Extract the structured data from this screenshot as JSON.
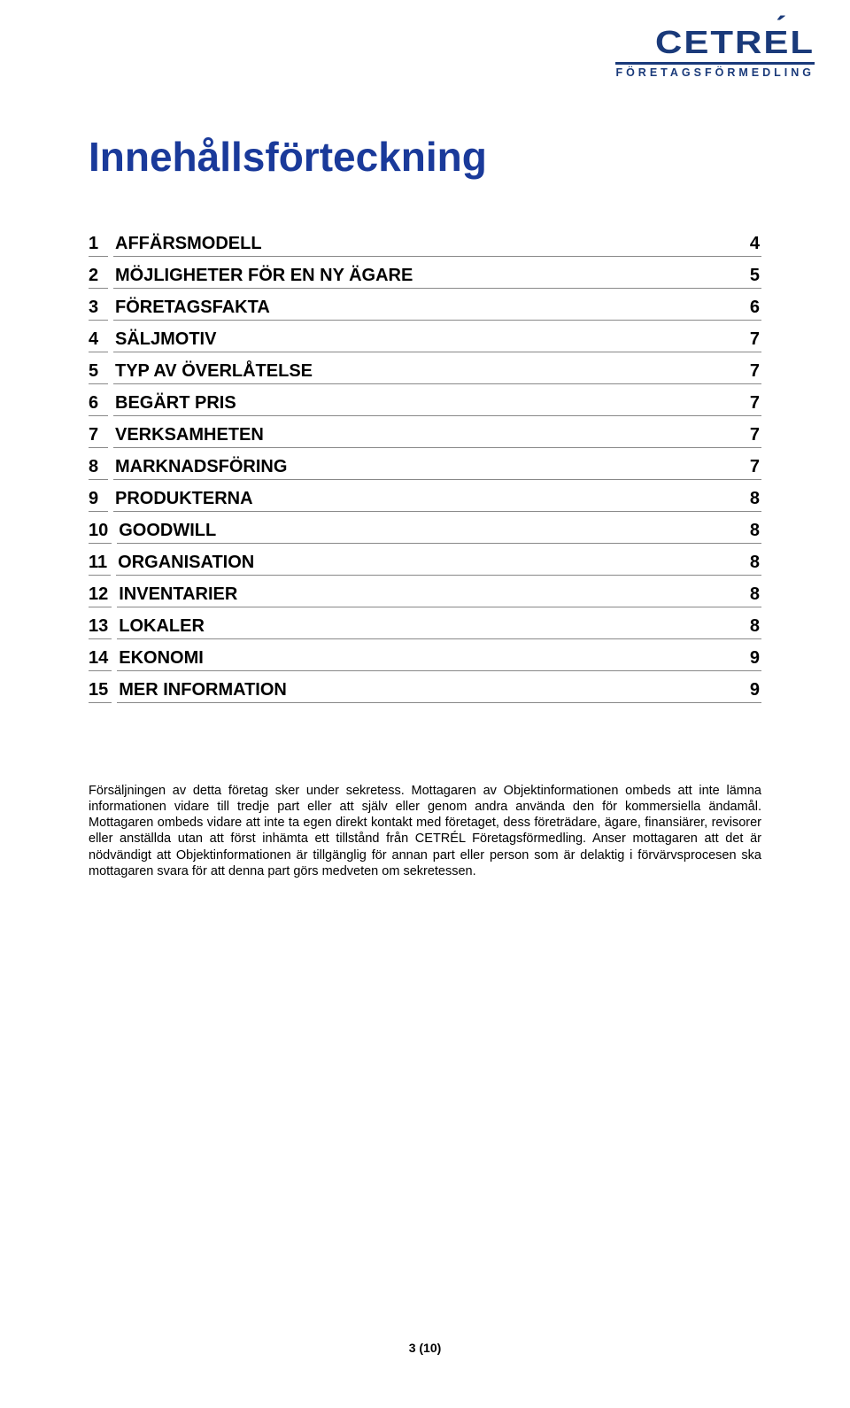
{
  "logo": {
    "main_prefix": "CETR",
    "main_accent": "E",
    "main_suffix": "L",
    "sub": "FÖRETAGSFÖRMEDLING",
    "color": "#1a3a7a"
  },
  "title": "Innehållsförteckning",
  "title_color": "#1a3a9a",
  "toc": [
    {
      "num": "1",
      "label": "AFFÄRSMODELL",
      "page": "4"
    },
    {
      "num": "2",
      "label": "MÖJLIGHETER FÖR EN NY ÄGARE",
      "page": "5"
    },
    {
      "num": "3",
      "label": "FÖRETAGSFAKTA",
      "page": "6"
    },
    {
      "num": "4",
      "label": "SÄLJMOTIV",
      "page": "7"
    },
    {
      "num": "5",
      "label": "TYP AV ÖVERLÅTELSE",
      "page": "7"
    },
    {
      "num": "6",
      "label": "BEGÄRT PRIS",
      "page": "7"
    },
    {
      "num": "7",
      "label": "VERKSAMHETEN",
      "page": "7"
    },
    {
      "num": "8",
      "label": "MARKNADSFÖRING",
      "page": "7"
    },
    {
      "num": "9",
      "label": "PRODUKTERNA",
      "page": "8"
    },
    {
      "num": "10",
      "label": "GOODWILL",
      "page": "8"
    },
    {
      "num": "11",
      "label": "ORGANISATION",
      "page": "8"
    },
    {
      "num": "12",
      "label": "INVENTARIER",
      "page": "8"
    },
    {
      "num": "13",
      "label": "LOKALER",
      "page": "8"
    },
    {
      "num": "14",
      "label": "EKONOMI",
      "page": "9"
    },
    {
      "num": "15",
      "label": "MER INFORMATION",
      "page": "9"
    }
  ],
  "disclaimer": "Försäljningen av detta företag sker under sekretess. Mottagaren av Objektinformationen ombeds att inte lämna informationen vidare till tredje part eller att själv eller genom andra använda den för kommersiella ändamål. Mottagaren ombeds vidare att inte ta egen direkt kontakt med företaget, dess företrädare, ägare, finansiärer, revisorer eller anställda utan att först inhämta ett tillstånd från CETRÉL Företagsförmedling. Anser mottagaren att det är nödvändigt att Objektinformationen är tillgänglig för annan part eller person som är delaktig i förvärvsprocesen ska mottagaren svara för att denna part görs medveten om sekretessen.",
  "footer": "3 (10)",
  "style": {
    "page_bg": "#ffffff",
    "toc_fontsize": 20,
    "toc_fontweight": "bold",
    "title_fontsize": 46,
    "disclaimer_fontsize": 14.5,
    "underline_color": "#888888"
  }
}
